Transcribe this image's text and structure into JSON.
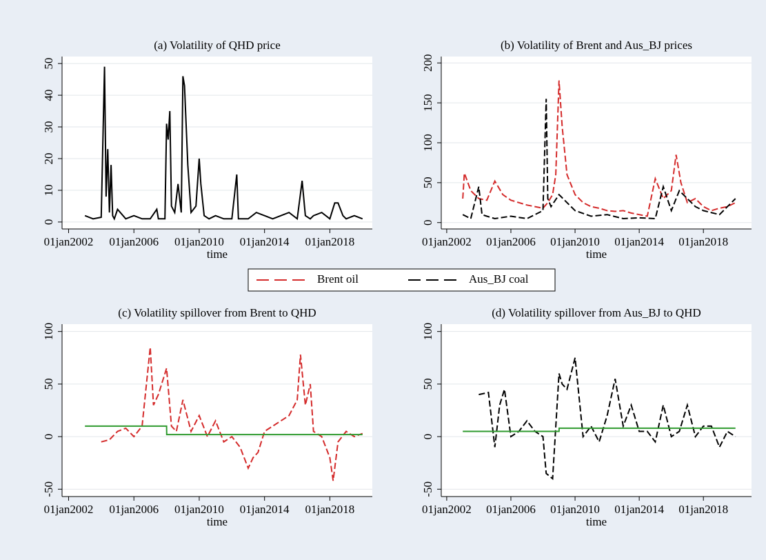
{
  "chart_data": [
    {
      "type": "line",
      "title": "(a) Volatility of QHD price",
      "x_label": "time",
      "xlim": [
        2001.6,
        2020.6
      ],
      "xticks": [
        {
          "value": 2002,
          "label": "01jan2002"
        },
        {
          "value": 2006,
          "label": "01jan2006"
        },
        {
          "value": 2010,
          "label": "01jan2010"
        },
        {
          "value": 2014,
          "label": "01jan2014"
        },
        {
          "value": 2018,
          "label": "01jan2018"
        }
      ],
      "ylim": [
        -2.2,
        52.2
      ],
      "yticks": [
        0,
        10,
        20,
        30,
        40,
        50
      ],
      "grid": true,
      "series": [
        {
          "color": "#000000",
          "line_style": "solid",
          "x": [
            2003,
            2003.5,
            2004,
            2004.2,
            2004.3,
            2004.4,
            2004.5,
            2004.6,
            2004.7,
            2004.8,
            2005,
            2005.5,
            2006,
            2006.5,
            2007,
            2007.4,
            2007.5,
            2007.7,
            2007.9,
            2008,
            2008.1,
            2008.2,
            2008.3,
            2008.5,
            2008.7,
            2008.9,
            2009,
            2009.1,
            2009.3,
            2009.5,
            2009.8,
            2010,
            2010.1,
            2010.3,
            2010.6,
            2011,
            2011.5,
            2012,
            2012.3,
            2012.4,
            2012.5,
            2013,
            2013.5,
            2014,
            2014.5,
            2015,
            2015.5,
            2016,
            2016.3,
            2016.5,
            2016.8,
            2017,
            2017.5,
            2018,
            2018.3,
            2018.5,
            2018.8,
            2019,
            2019.5,
            2020
          ],
          "values": [
            2,
            1,
            1.5,
            49,
            8,
            23,
            3,
            18,
            2,
            1,
            4,
            1,
            2,
            1,
            1,
            4,
            1,
            1,
            1,
            31,
            26,
            35,
            5,
            3,
            12,
            3,
            46,
            43,
            18,
            3,
            5,
            20,
            12,
            2,
            1,
            2,
            1,
            1,
            15,
            1,
            1,
            1,
            3,
            2,
            1,
            2,
            3,
            1,
            13,
            2,
            1,
            2,
            3,
            1,
            6,
            6,
            2,
            1,
            2,
            1
          ]
        }
      ]
    },
    {
      "type": "line",
      "title": "(b) Volatility of Brent and Aus_BJ prices",
      "x_label": "time",
      "xlim": [
        2001.66,
        2021.0
      ],
      "xticks": [
        {
          "value": 2002,
          "label": "01jan2002"
        },
        {
          "value": 2006,
          "label": "01jan2006"
        },
        {
          "value": 2010,
          "label": "01jan2010"
        },
        {
          "value": 2014,
          "label": "01jan2014"
        },
        {
          "value": 2018,
          "label": "01jan2018"
        }
      ],
      "ylim": [
        -8,
        208
      ],
      "yticks": [
        0,
        50,
        100,
        150,
        200
      ],
      "grid": true,
      "series": [
        {
          "name": "Brent oil",
          "color": "#d42a2a",
          "line_style": "dashed",
          "x": [
            2003,
            2003.1,
            2003.5,
            2004,
            2004.5,
            2005,
            2005.5,
            2006,
            2006.5,
            2007,
            2007.5,
            2008,
            2008.3,
            2008.6,
            2008.8,
            2009,
            2009.2,
            2009.5,
            2010,
            2010.5,
            2011,
            2011.5,
            2012,
            2012.5,
            2013,
            2013.5,
            2014,
            2014.5,
            2015,
            2015.5,
            2016,
            2016.3,
            2016.6,
            2017,
            2017.5,
            2018,
            2018.5,
            2019,
            2019.5,
            2020
          ],
          "values": [
            30,
            62,
            40,
            30,
            28,
            52,
            35,
            28,
            25,
            22,
            20,
            18,
            25,
            35,
            60,
            178,
            120,
            60,
            35,
            25,
            20,
            18,
            15,
            14,
            15,
            12,
            10,
            8,
            55,
            30,
            40,
            85,
            50,
            25,
            30,
            20,
            15,
            18,
            20,
            25
          ]
        },
        {
          "name": "Aus_BJ coal",
          "color": "#000000",
          "line_style": "dashed",
          "x": [
            2003,
            2003.5,
            2004,
            2004.2,
            2004.5,
            2005,
            2006,
            2007,
            2007.5,
            2008,
            2008.2,
            2008.3,
            2008.5,
            2009,
            2009.5,
            2010,
            2011,
            2012,
            2013,
            2014,
            2015,
            2015.5,
            2016,
            2016.5,
            2017,
            2017.5,
            2018,
            2019,
            2019.5,
            2020
          ],
          "values": [
            10,
            5,
            45,
            10,
            8,
            5,
            8,
            5,
            10,
            15,
            155,
            30,
            20,
            35,
            25,
            15,
            8,
            10,
            5,
            6,
            5,
            45,
            15,
            40,
            30,
            20,
            15,
            10,
            20,
            30
          ]
        }
      ]
    },
    {
      "type": "line",
      "title": "(c) Volatility spillover from Brent to QHD",
      "x_label": "time",
      "xlim": [
        2001.6,
        2020.6
      ],
      "xticks": [
        {
          "value": 2002,
          "label": "01jan2002"
        },
        {
          "value": 2006,
          "label": "01jan2006"
        },
        {
          "value": 2010,
          "label": "01jan2010"
        },
        {
          "value": 2014,
          "label": "01jan2014"
        },
        {
          "value": 2018,
          "label": "01jan2018"
        }
      ],
      "ylim": [
        -57,
        107
      ],
      "yticks": [
        -50,
        0,
        50,
        100
      ],
      "grid": true,
      "series": [
        {
          "color": "#d42a2a",
          "line_style": "dashed",
          "x": [
            2004,
            2004.5,
            2005,
            2005.5,
            2006,
            2006.5,
            2007,
            2007.2,
            2007.5,
            2008,
            2008.3,
            2008.6,
            2009,
            2009.5,
            2010,
            2010.5,
            2011,
            2011.5,
            2012,
            2012.5,
            2013,
            2013.3,
            2013.6,
            2014,
            2014.5,
            2015,
            2015.5,
            2016,
            2016.2,
            2016.5,
            2016.8,
            2017,
            2017.5,
            2018,
            2018.2,
            2018.5,
            2019,
            2019.5,
            2020
          ],
          "values": [
            -5,
            -3,
            5,
            8,
            0,
            10,
            85,
            30,
            40,
            65,
            10,
            5,
            35,
            5,
            20,
            0,
            15,
            -5,
            0,
            -10,
            -30,
            -20,
            -15,
            5,
            10,
            15,
            20,
            35,
            78,
            30,
            50,
            5,
            0,
            -20,
            -42,
            -5,
            5,
            0,
            3
          ]
        },
        {
          "color": "#2e9a2e",
          "line_style": "solid",
          "x": [
            2003,
            2008,
            2008.01,
            2020
          ],
          "values": [
            10,
            10,
            2,
            2
          ]
        }
      ]
    },
    {
      "type": "line",
      "title": "(d) Volatility spillover from Aus_BJ to QHD",
      "x_label": "time",
      "xlim": [
        2001.66,
        2021.0
      ],
      "xticks": [
        {
          "value": 2002,
          "label": "01jan2002"
        },
        {
          "value": 2006,
          "label": "01jan2006"
        },
        {
          "value": 2010,
          "label": "01jan2010"
        },
        {
          "value": 2014,
          "label": "01jan2014"
        },
        {
          "value": 2018,
          "label": "01jan2018"
        }
      ],
      "ylim": [
        -57,
        107
      ],
      "yticks": [
        -50,
        0,
        50,
        100
      ],
      "grid": true,
      "series": [
        {
          "color": "#000000",
          "line_style": "dashed",
          "x": [
            2004,
            2004.6,
            2005,
            2005.3,
            2005.6,
            2006,
            2006.5,
            2007,
            2007.5,
            2008,
            2008.2,
            2008.6,
            2009,
            2009.2,
            2009.5,
            2010,
            2010.5,
            2011,
            2011.5,
            2012,
            2012.5,
            2013,
            2013.5,
            2014,
            2014.5,
            2015,
            2015.5,
            2016,
            2016.5,
            2017,
            2017.5,
            2018,
            2018.5,
            2019,
            2019.5,
            2020
          ],
          "values": [
            40,
            42,
            -10,
            30,
            45,
            0,
            5,
            15,
            5,
            0,
            -35,
            -40,
            60,
            50,
            45,
            75,
            0,
            10,
            -5,
            20,
            55,
            10,
            30,
            5,
            5,
            -5,
            30,
            0,
            5,
            30,
            0,
            10,
            10,
            -10,
            5,
            0
          ]
        },
        {
          "color": "#2e9a2e",
          "line_style": "solid",
          "x": [
            2003,
            2009,
            2009.01,
            2020
          ],
          "values": [
            5,
            5,
            8,
            8
          ]
        }
      ]
    }
  ]
}
